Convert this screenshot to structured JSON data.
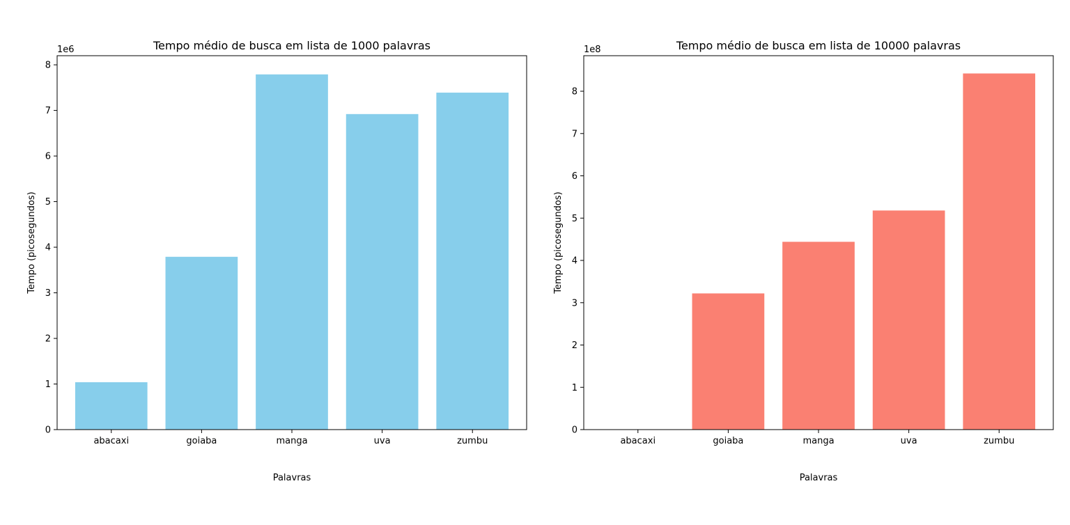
{
  "chart_data": [
    {
      "type": "bar",
      "title": "Tempo médio de busca em lista de 1000 palavras",
      "xlabel": "Palavras",
      "ylabel": "Tempo (picosegundos)",
      "offset_label": "1e6",
      "categories": [
        "abacaxi",
        "goiaba",
        "manga",
        "uva",
        "zumbu"
      ],
      "values": [
        1040000,
        3790000,
        7790000,
        6920000,
        7390000
      ],
      "ylim": [
        0,
        8200000
      ],
      "yticks": [
        0,
        1,
        2,
        3,
        4,
        5,
        6,
        7,
        8
      ],
      "ytick_scale": 1000000,
      "color": "#87CEEB",
      "grid": false,
      "legend": "none"
    },
    {
      "type": "bar",
      "title": "Tempo médio de busca em lista de 10000 palavras",
      "xlabel": "Palavras",
      "ylabel": "Tempo (picosegundos)",
      "offset_label": "1e8",
      "categories": [
        "abacaxi",
        "goiaba",
        "manga",
        "uva",
        "zumbu"
      ],
      "values": [
        0,
        322000000,
        444000000,
        518000000,
        842000000
      ],
      "ylim": [
        0,
        884000000
      ],
      "yticks": [
        0,
        1,
        2,
        3,
        4,
        5,
        6,
        7,
        8
      ],
      "ytick_scale": 100000000,
      "color": "#FA8072",
      "grid": false,
      "legend": "none"
    }
  ]
}
